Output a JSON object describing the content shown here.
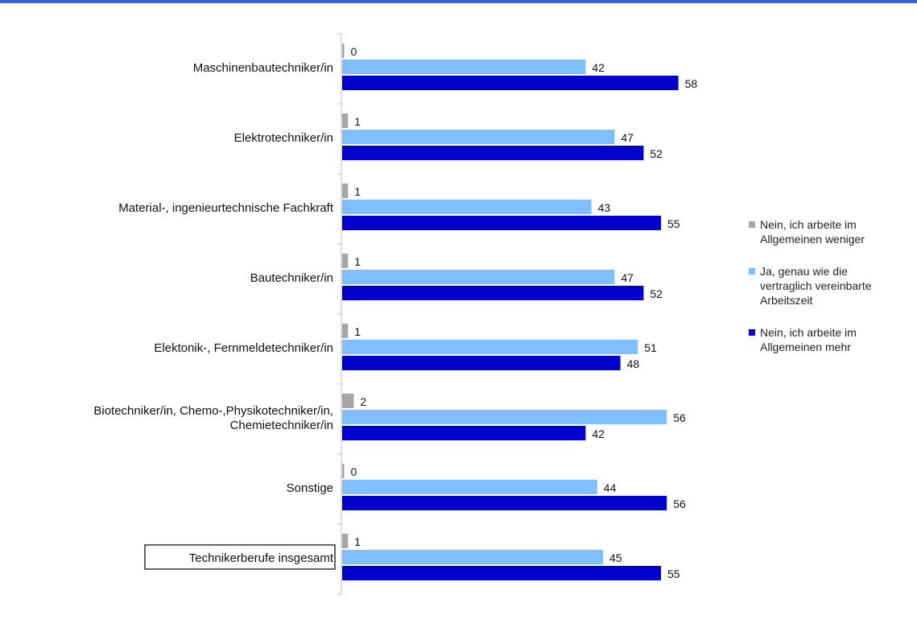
{
  "chart_data": {
    "type": "bar",
    "orientation": "horizontal",
    "categories": [
      "Maschinenbautechniker/in",
      "Elektrotechniker/in",
      "Material-, ingenieurtechnische Fachkraft",
      "Bautechniker/in",
      "Elektonik-, Fernmeldetechniker/in",
      "Biotechniker/in, Chemo-,Physikotechniker/in,\nChemietechniker/in",
      "Sonstige",
      "Technikerberufe insgesamt"
    ],
    "series": [
      {
        "name": "Nein, ich arbeite im\nAllgemeinen weniger",
        "color": "#a6a6a6",
        "values": [
          0,
          1,
          1,
          1,
          1,
          2,
          0,
          1
        ]
      },
      {
        "name": "Ja, genau wie die\nvertraglich vereinbarte\nArbeitszeit",
        "color": "#7fbfff",
        "values": [
          42,
          47,
          43,
          47,
          51,
          56,
          44,
          45
        ]
      },
      {
        "name": "Nein, ich arbeite im\nAllgemeinen mehr",
        "color": "#0000cc",
        "values": [
          58,
          52,
          55,
          52,
          48,
          42,
          56,
          55
        ]
      }
    ],
    "xlim": [
      0,
      100
    ],
    "grid": false,
    "legend_position": "right",
    "boxed_category": "Technikerberufe insgesamt"
  }
}
